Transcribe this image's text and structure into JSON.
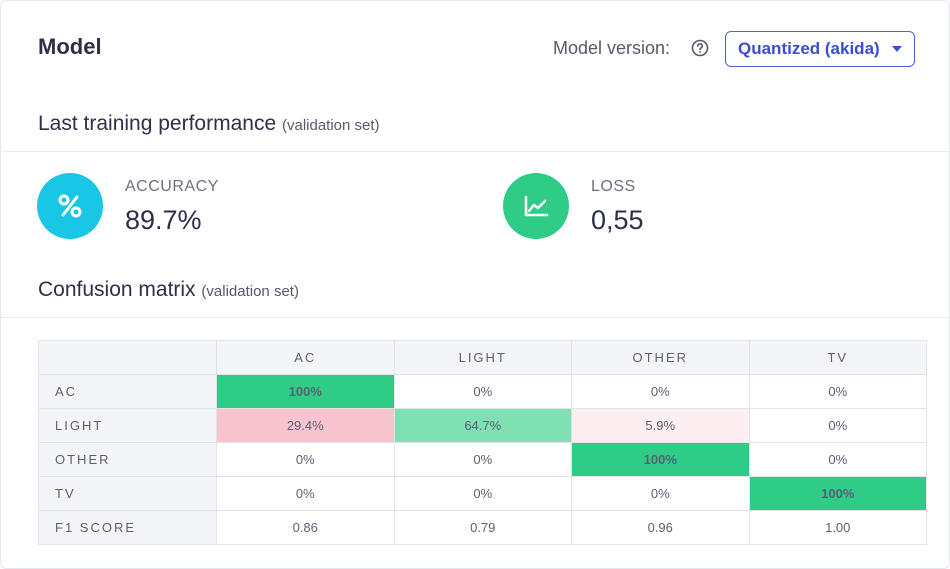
{
  "header": {
    "title": "Model",
    "model_version_label": "Model version:",
    "model_version_value": "Quantized (akida)"
  },
  "performance": {
    "title": "Last training performance",
    "subtitle": "(validation set)",
    "accuracy": {
      "label": "ACCURACY",
      "value": "89.7%",
      "icon": "percent-icon",
      "color": "#19c6e6"
    },
    "loss": {
      "label": "LOSS",
      "value": "0,55",
      "icon": "chart-line-icon",
      "color": "#2ecc87"
    }
  },
  "confusion": {
    "title": "Confusion matrix",
    "subtitle": "(validation set)",
    "columns": [
      "AC",
      "LIGHT",
      "OTHER",
      "TV"
    ],
    "rows": [
      {
        "label": "AC",
        "cells": [
          "100%",
          "0%",
          "0%",
          "0%"
        ]
      },
      {
        "label": "LIGHT",
        "cells": [
          "29.4%",
          "64.7%",
          "5.9%",
          "0%"
        ]
      },
      {
        "label": "OTHER",
        "cells": [
          "0%",
          "0%",
          "100%",
          "0%"
        ]
      },
      {
        "label": "TV",
        "cells": [
          "0%",
          "0%",
          "0%",
          "100%"
        ]
      },
      {
        "label": "F1 SCORE",
        "cells": [
          "0.86",
          "0.79",
          "0.96",
          "1.00"
        ]
      }
    ],
    "colors": {
      "correct": "#2ecc87",
      "partial_correct": "#7ee0b3",
      "error": "#f8c4cf",
      "minor_error": "#fdeef1"
    }
  }
}
